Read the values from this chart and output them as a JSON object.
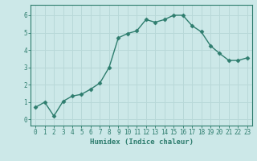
{
  "x": [
    0,
    1,
    2,
    3,
    4,
    5,
    6,
    7,
    8,
    9,
    10,
    11,
    12,
    13,
    14,
    15,
    16,
    17,
    18,
    19,
    20,
    21,
    22,
    23
  ],
  "y": [
    0.7,
    1.0,
    0.2,
    1.05,
    1.35,
    1.45,
    1.75,
    2.1,
    3.0,
    4.7,
    4.95,
    5.1,
    5.75,
    5.6,
    5.75,
    6.0,
    6.0,
    5.4,
    5.05,
    4.25,
    3.8,
    3.4,
    3.4,
    3.55
  ],
  "line_color": "#2e7d6e",
  "marker": "D",
  "marker_size": 2.5,
  "bg_color": "#cce8e8",
  "grid_color": "#b8d8d8",
  "xlabel": "Humidex (Indice chaleur)",
  "xlim": [
    -0.5,
    23.5
  ],
  "ylim": [
    -0.35,
    6.6
  ],
  "yticks": [
    0,
    1,
    2,
    3,
    4,
    5,
    6
  ],
  "xticks": [
    0,
    1,
    2,
    3,
    4,
    5,
    6,
    7,
    8,
    9,
    10,
    11,
    12,
    13,
    14,
    15,
    16,
    17,
    18,
    19,
    20,
    21,
    22,
    23
  ],
  "tick_color": "#2e7d6e",
  "label_color": "#2e7d6e",
  "axis_color": "#2e7d6e",
  "tick_fontsize": 5.5,
  "ylabel_fontsize": 6.5,
  "xlabel_fontsize": 6.5
}
